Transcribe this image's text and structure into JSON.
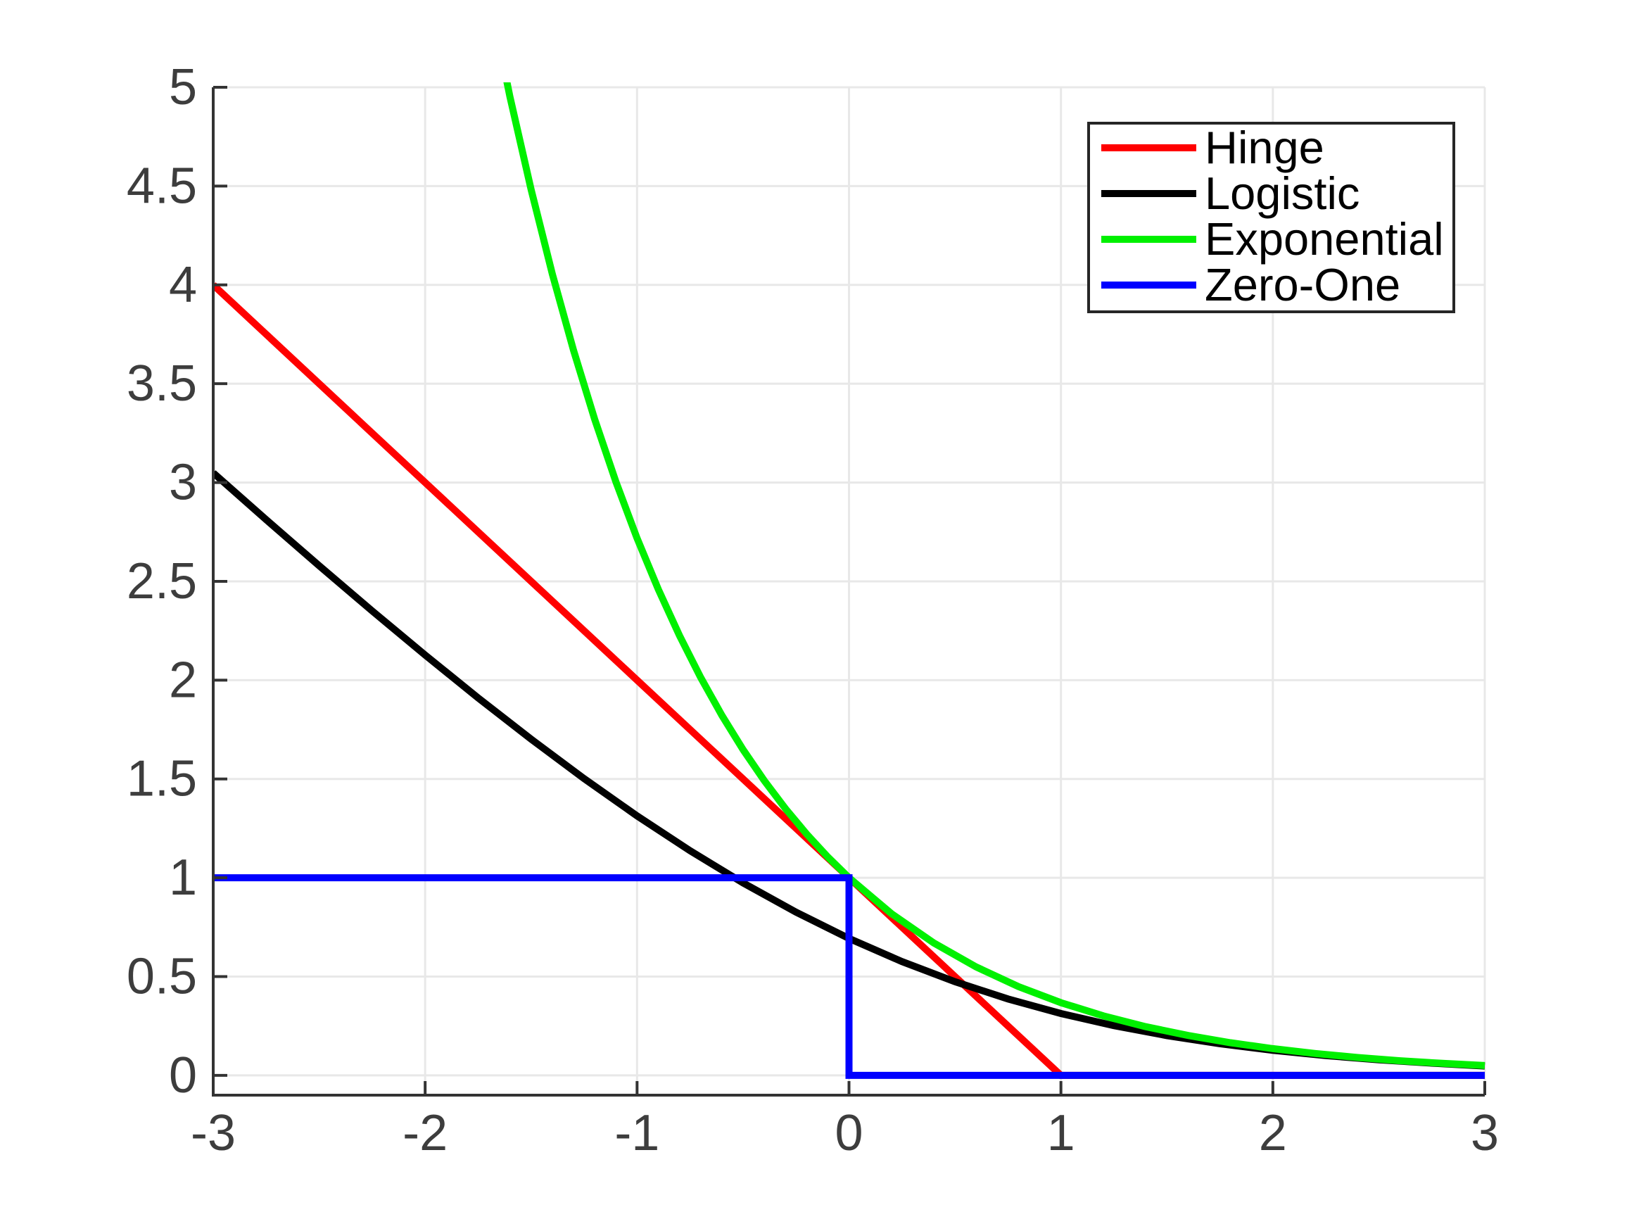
{
  "chart_data": {
    "type": "line",
    "title": "",
    "xlabel": "",
    "ylabel": "",
    "xlim": [
      -3,
      3
    ],
    "ylim": [
      -0.1,
      5
    ],
    "grid": true,
    "legend_position": "top-right",
    "x_ticks": [
      -3,
      -2,
      -1,
      0,
      1,
      2,
      3
    ],
    "x_tick_labels": [
      "-3",
      "-2",
      "-1",
      "0",
      "1",
      "2",
      "3"
    ],
    "y_ticks": [
      0,
      0.5,
      1,
      1.5,
      2,
      2.5,
      3,
      3.5,
      4,
      4.5,
      5
    ],
    "y_tick_labels": [
      "0",
      "0.5",
      "1",
      "1.5",
      "2",
      "2.5",
      "3",
      "3.5",
      "4",
      "4.5",
      "5"
    ],
    "series": [
      {
        "name": "Hinge",
        "color": "#ff0000",
        "points": [
          [
            -3,
            4
          ],
          [
            1,
            0
          ],
          [
            3,
            0
          ]
        ]
      },
      {
        "name": "Logistic",
        "color": "#000000",
        "points": [
          [
            -3,
            3.0486
          ],
          [
            -2.75,
            2.812
          ],
          [
            -2.5,
            2.579
          ],
          [
            -2.25,
            2.3502
          ],
          [
            -2,
            2.1269
          ],
          [
            -1.75,
            1.9102
          ],
          [
            -1.5,
            1.7014
          ],
          [
            -1.25,
            1.502
          ],
          [
            -1,
            1.3133
          ],
          [
            -0.75,
            1.1369
          ],
          [
            -0.5,
            0.9741
          ],
          [
            -0.25,
            0.8259
          ],
          [
            0,
            0.6931
          ],
          [
            0.25,
            0.576
          ],
          [
            0.5,
            0.4741
          ],
          [
            0.75,
            0.387
          ],
          [
            1,
            0.3133
          ],
          [
            1.25,
            0.252
          ],
          [
            1.5,
            0.2014
          ],
          [
            1.75,
            0.1602
          ],
          [
            2,
            0.1269
          ],
          [
            2.25,
            0.1002
          ],
          [
            2.5,
            0.0789
          ],
          [
            2.75,
            0.0619
          ],
          [
            3,
            0.0474
          ]
        ]
      },
      {
        "name": "Exponential",
        "color": "#00f000",
        "points": [
          [
            -1.72,
            5.5845
          ],
          [
            -1.6,
            4.953
          ],
          [
            -1.5,
            4.4817
          ],
          [
            -1.4,
            4.0552
          ],
          [
            -1.3,
            3.6693
          ],
          [
            -1.2,
            3.3201
          ],
          [
            -1.1,
            3.0042
          ],
          [
            -1,
            2.7183
          ],
          [
            -0.9,
            2.4596
          ],
          [
            -0.8,
            2.2255
          ],
          [
            -0.7,
            2.0138
          ],
          [
            -0.6,
            1.8221
          ],
          [
            -0.5,
            1.6487
          ],
          [
            -0.4,
            1.4918
          ],
          [
            -0.3,
            1.3499
          ],
          [
            -0.2,
            1.2214
          ],
          [
            -0.1,
            1.1052
          ],
          [
            0,
            1.0
          ],
          [
            0.2,
            0.8187
          ],
          [
            0.4,
            0.6703
          ],
          [
            0.6,
            0.5488
          ],
          [
            0.8,
            0.4493
          ],
          [
            1,
            0.3679
          ],
          [
            1.2,
            0.3012
          ],
          [
            1.4,
            0.2466
          ],
          [
            1.6,
            0.2019
          ],
          [
            1.8,
            0.1653
          ],
          [
            2,
            0.1353
          ],
          [
            2.2,
            0.1108
          ],
          [
            2.4,
            0.0907
          ],
          [
            2.6,
            0.0743
          ],
          [
            2.8,
            0.0608
          ],
          [
            3,
            0.0498
          ]
        ]
      },
      {
        "name": "Zero-One",
        "color": "#0000ff",
        "points": [
          [
            -3,
            1
          ],
          [
            0,
            1
          ],
          [
            0,
            0
          ],
          [
            3,
            0
          ]
        ]
      }
    ]
  },
  "style_colors": {
    "background": "#ffffff",
    "axis": "#333333",
    "grid": "#e8e8e8",
    "tick_label": "#3d3d3d",
    "legend_border": "#262626",
    "legend_background": "#ffffff"
  }
}
